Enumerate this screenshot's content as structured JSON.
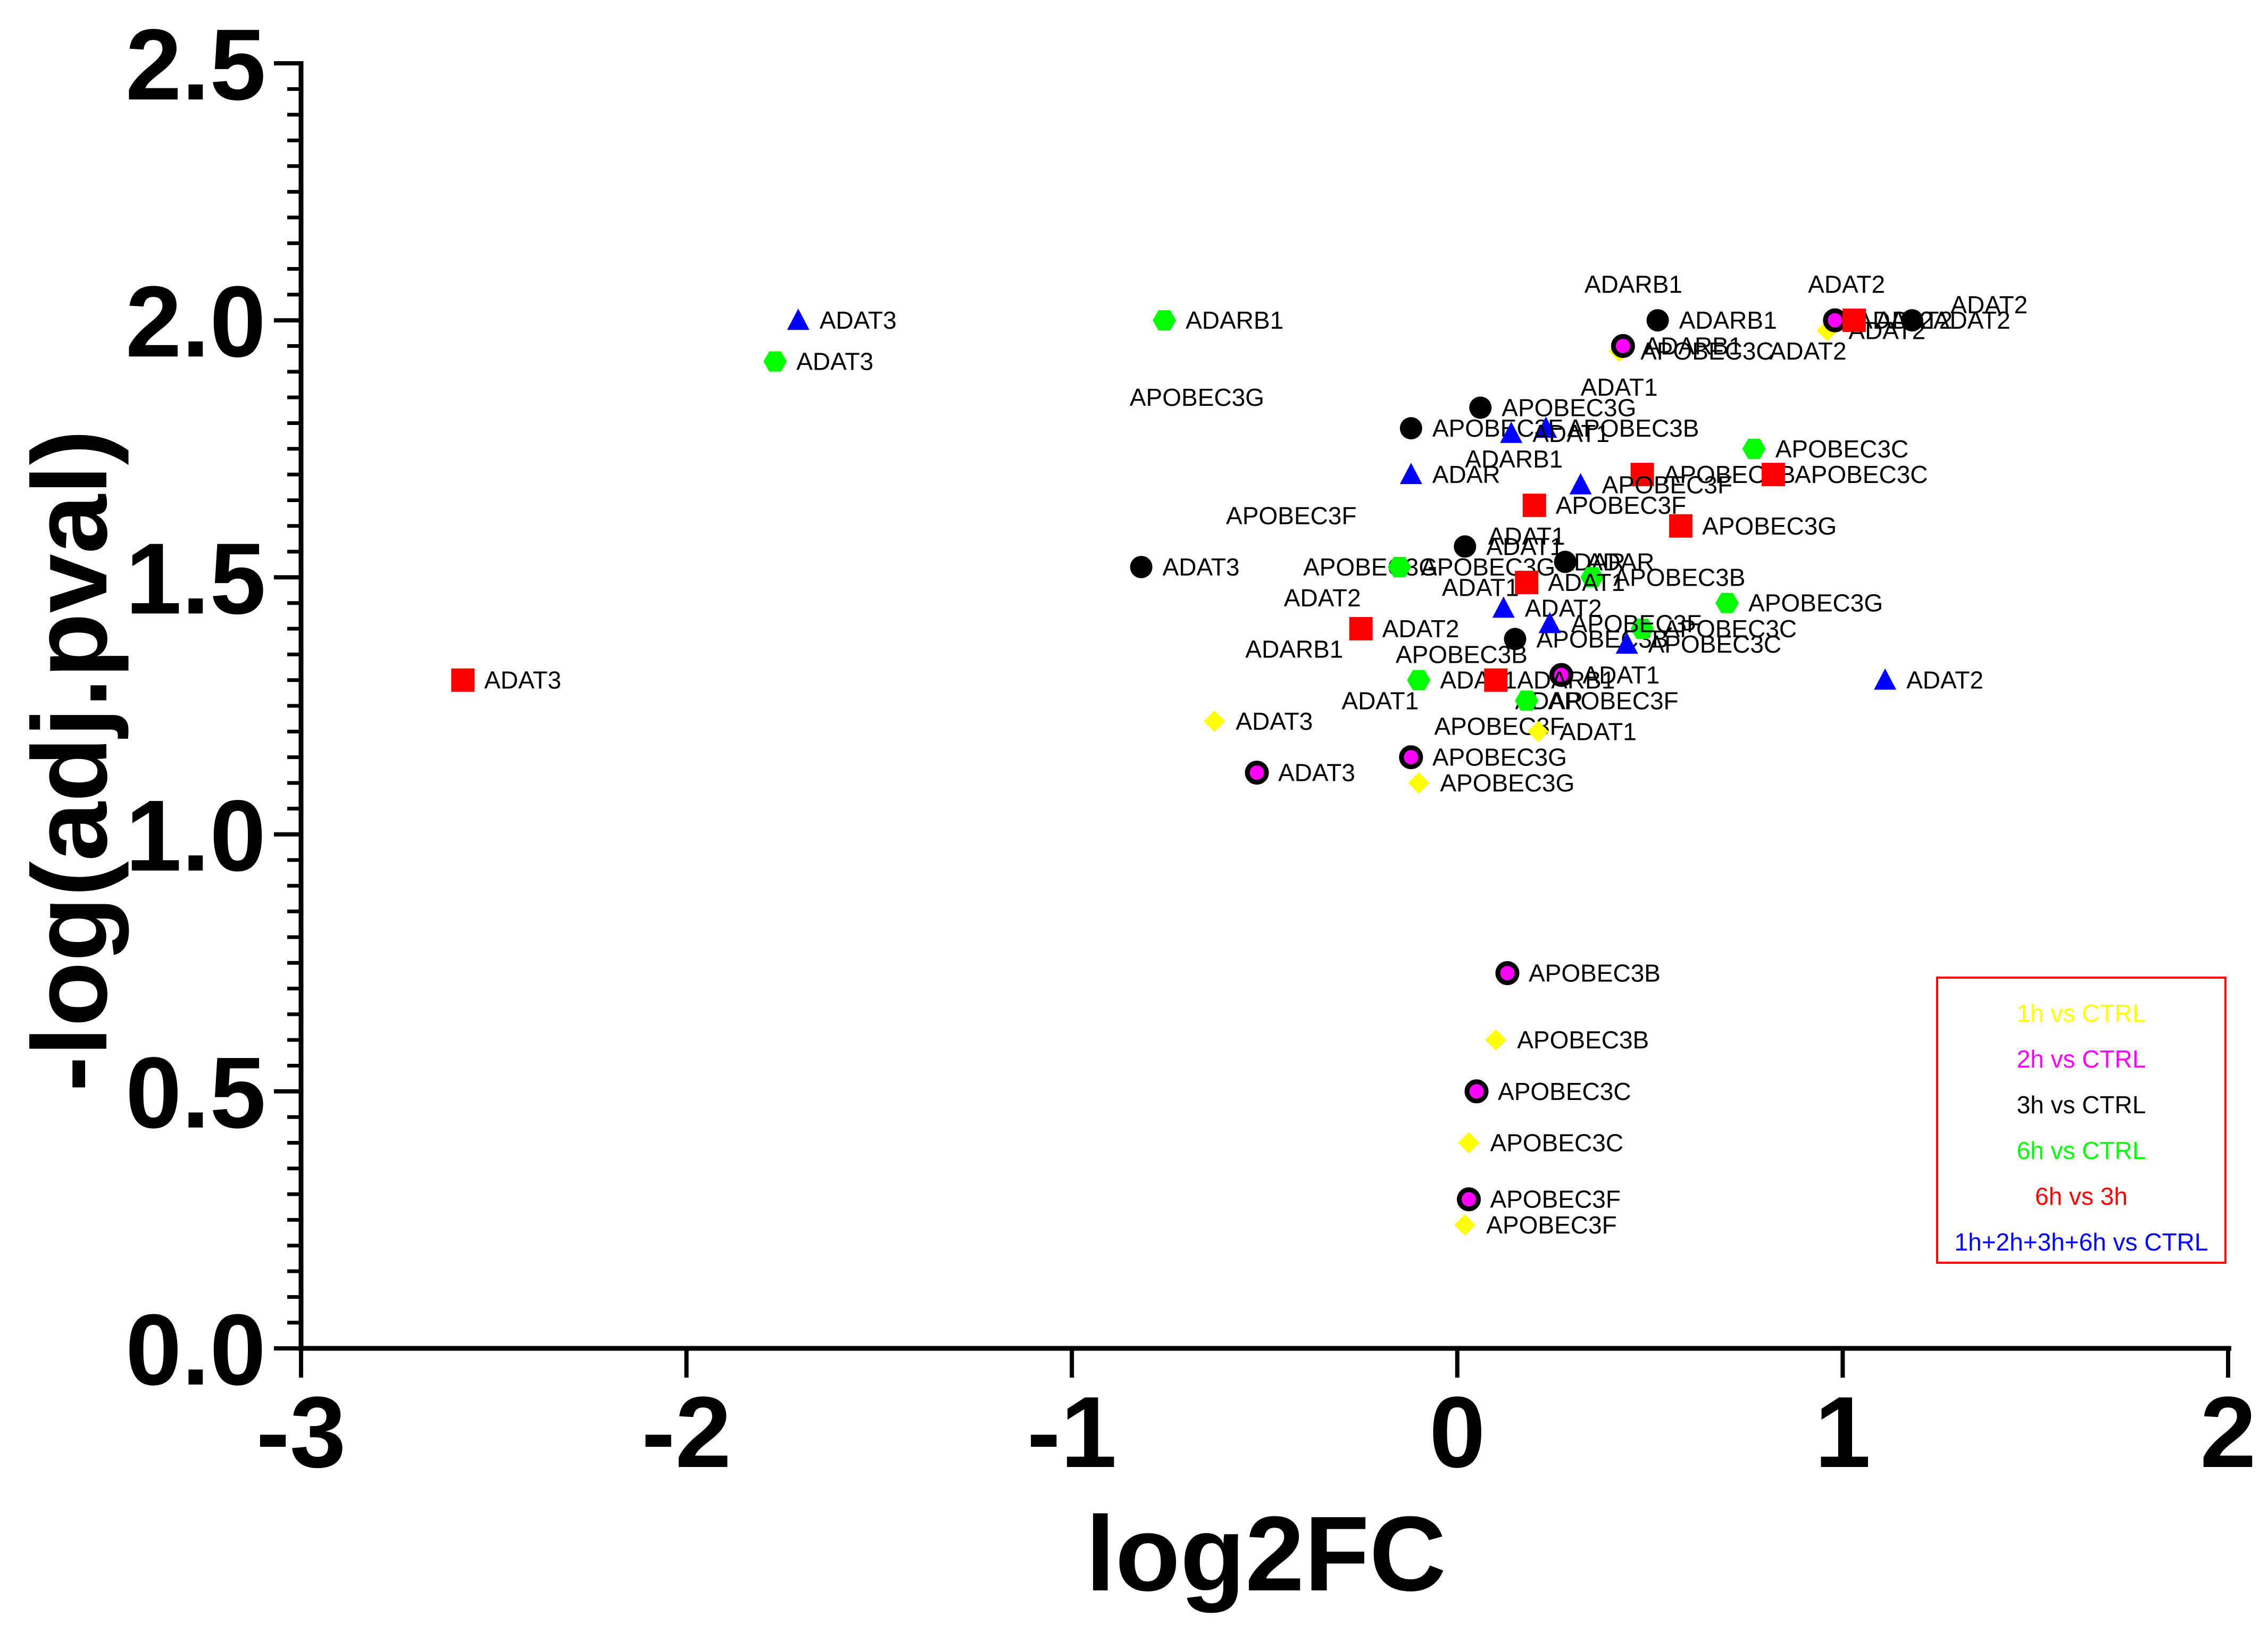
{
  "chart_data": {
    "type": "scatter",
    "title": "",
    "xlabel": "log2FC",
    "ylabel": "-log(adj.pval)",
    "xlim": [
      -3,
      2
    ],
    "ylim": [
      0,
      2.5
    ],
    "x_ticks": [
      "-3",
      "-2",
      "-1",
      "0",
      "1",
      "2"
    ],
    "y_ticks": [
      "0.0",
      "0.5",
      "1.0",
      "1.5",
      "2.0",
      "2.5"
    ],
    "legend_position": "bottom-right",
    "series": [
      {
        "name": "1h vs CTRL",
        "color": "#ffff00",
        "marker": "diamond",
        "points": [
          {
            "x": 0.42,
            "y": 1.94,
            "label": "APOBEC3C"
          },
          {
            "x": 0.96,
            "y": 1.98,
            "label": "ADAT2"
          },
          {
            "x": -0.63,
            "y": 1.22,
            "label": "ADAT3"
          },
          {
            "x": 0.21,
            "y": 1.2,
            "label": "ADAT1"
          },
          {
            "x": -0.1,
            "y": 1.1,
            "label": "APOBEC3G"
          },
          {
            "x": 0.1,
            "y": 0.6,
            "label": "APOBEC3B"
          },
          {
            "x": 0.03,
            "y": 0.4,
            "label": "APOBEC3C"
          },
          {
            "x": 0.02,
            "y": 0.24,
            "label": "APOBEC3F"
          }
        ]
      },
      {
        "name": "2h vs CTRL",
        "color": "#ff00ff",
        "marker": "ringed-circle",
        "points": [
          {
            "x": 0.43,
            "y": 1.95,
            "label": "ADARB1"
          },
          {
            "x": 0.98,
            "y": 2.0,
            "label": "ADAT2"
          },
          {
            "x": 0.27,
            "y": 1.31,
            "label": "ADAT1"
          },
          {
            "x": -0.52,
            "y": 1.12,
            "label": "ADAT3"
          },
          {
            "x": -0.12,
            "y": 1.15,
            "label": "APOBEC3G"
          },
          {
            "x": 0.13,
            "y": 0.73,
            "label": "APOBEC3B"
          },
          {
            "x": 0.05,
            "y": 0.5,
            "label": "APOBEC3C"
          },
          {
            "x": 0.03,
            "y": 0.29,
            "label": "APOBEC3F"
          }
        ]
      },
      {
        "name": "3h vs CTRL",
        "color": "#000000",
        "marker": "circle",
        "points": [
          {
            "x": 0.52,
            "y": 2.0,
            "label": "ADARB1"
          },
          {
            "x": 1.18,
            "y": 2.0,
            "label": "ADAT2"
          },
          {
            "x": 0.06,
            "y": 1.83,
            "label": "APOBEC3G"
          },
          {
            "x": -0.12,
            "y": 1.79,
            "label": "APOBEC3F"
          },
          {
            "x": 0.02,
            "y": 1.56,
            "label": "ADAT1"
          },
          {
            "x": 0.28,
            "y": 1.53,
            "label": "ADAR"
          },
          {
            "x": -0.82,
            "y": 1.52,
            "label": "ADAT3"
          },
          {
            "x": 0.15,
            "y": 1.38,
            "label": "APOBEC3B"
          }
        ]
      },
      {
        "name": "6h vs CTRL",
        "color": "#00ff00",
        "marker": "hexagon",
        "points": [
          {
            "x": -1.77,
            "y": 1.92,
            "label": "ADAT3"
          },
          {
            "x": -0.76,
            "y": 2.0,
            "label": "ADARB1"
          },
          {
            "x": 0.77,
            "y": 1.75,
            "label": "APOBEC3C"
          },
          {
            "x": -0.15,
            "y": 1.52,
            "label": "APOBEC3G"
          },
          {
            "x": 0.35,
            "y": 1.5,
            "label": "APOBEC3B"
          },
          {
            "x": 0.7,
            "y": 1.45,
            "label": "APOBEC3G"
          },
          {
            "x": 0.48,
            "y": 1.4,
            "label": "APOBEC3C"
          },
          {
            "x": -0.1,
            "y": 1.3,
            "label": "ADAT1"
          },
          {
            "x": 0.18,
            "y": 1.26,
            "label": "APOBEC3F"
          }
        ]
      },
      {
        "name": "6h vs 3h",
        "color": "#ff0000",
        "marker": "square",
        "points": [
          {
            "x": 1.03,
            "y": 2.0,
            "label": "ADAT2"
          },
          {
            "x": 0.48,
            "y": 1.7,
            "label": "APOBEC3B"
          },
          {
            "x": 0.82,
            "y": 1.7,
            "label": "APOBEC3C"
          },
          {
            "x": 0.2,
            "y": 1.64,
            "label": "APOBEC3F"
          },
          {
            "x": 0.58,
            "y": 1.6,
            "label": "APOBEC3G"
          },
          {
            "x": 0.18,
            "y": 1.49,
            "label": "ADAT1"
          },
          {
            "x": -0.25,
            "y": 1.4,
            "label": "ADAT2"
          },
          {
            "x": 0.1,
            "y": 1.3,
            "label": "ADARB1"
          },
          {
            "x": -2.58,
            "y": 1.3,
            "label": "ADAT3"
          }
        ]
      },
      {
        "name": "1h+2h+3h+6h vs CTRL",
        "color": "#0000ff",
        "marker": "triangle",
        "points": [
          {
            "x": -1.71,
            "y": 2.0,
            "label": "ADAT3"
          },
          {
            "x": 0.23,
            "y": 1.79,
            "label": "APOBEC3B"
          },
          {
            "x": 0.14,
            "y": 1.78,
            "label": "ADAT1"
          },
          {
            "x": -0.12,
            "y": 1.7,
            "label": "ADAR"
          },
          {
            "x": 0.32,
            "y": 1.68,
            "label": "APOBEC3F"
          },
          {
            "x": 0.12,
            "y": 1.44,
            "label": "ADAT2"
          },
          {
            "x": 0.24,
            "y": 1.41,
            "label": "APOBEC3F"
          },
          {
            "x": 0.44,
            "y": 1.37,
            "label": "APOBEC3C"
          },
          {
            "x": 1.11,
            "y": 1.3,
            "label": "ADAT2"
          }
        ]
      }
    ],
    "free_labels": [
      {
        "text": "ADARB1",
        "x": 0.33,
        "y": 2.07
      },
      {
        "text": "ADAT2",
        "x": 0.91,
        "y": 2.07
      },
      {
        "text": "ADAT2",
        "x": 1.28,
        "y": 2.03
      },
      {
        "text": "ADAT2",
        "x": 0.81,
        "y": 1.94
      },
      {
        "text": "APOBEC3G",
        "x": -0.85,
        "y": 1.85
      },
      {
        "text": "ADAT1",
        "x": 0.32,
        "y": 1.87
      },
      {
        "text": "ADARB1",
        "x": 0.02,
        "y": 1.73
      },
      {
        "text": "APOBEC3F",
        "x": -0.6,
        "y": 1.62
      },
      {
        "text": "ADAT1",
        "x": 0.08,
        "y": 1.58
      },
      {
        "text": "APOBEC3G",
        "x": -0.4,
        "y": 1.52
      },
      {
        "text": "ADAR",
        "x": 0.26,
        "y": 1.53
      },
      {
        "text": "ADAT1",
        "x": -0.04,
        "y": 1.48
      },
      {
        "text": "ADAT2",
        "x": -0.45,
        "y": 1.46
      },
      {
        "text": "ADARB1",
        "x": -0.55,
        "y": 1.36
      },
      {
        "text": "APOBEC3B",
        "x": -0.16,
        "y": 1.35
      },
      {
        "text": "ADAT1",
        "x": -0.3,
        "y": 1.26
      },
      {
        "text": "ADAR",
        "x": 0.15,
        "y": 1.26
      },
      {
        "text": "APOBEC3F",
        "x": -0.06,
        "y": 1.21
      }
    ]
  }
}
